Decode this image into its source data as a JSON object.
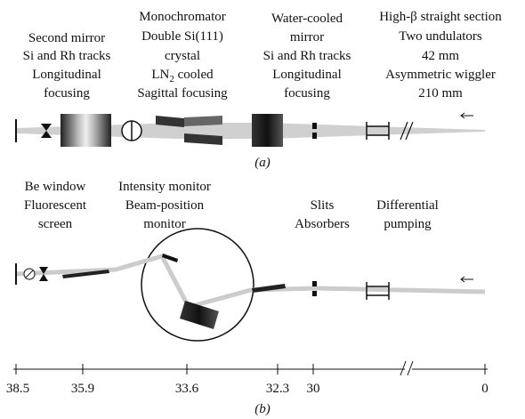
{
  "panel_a": {
    "second_mirror": [
      "Second mirror",
      "Si and Rh tracks",
      "Longitudinal",
      "focusing"
    ],
    "monochromator": {
      "lines": [
        "Monochromator",
        "Double Si(111)",
        "crystal"
      ],
      "ln": "LN",
      "ln_sub": "2",
      "ln_rest": " cooled",
      "last": "Sagittal focusing"
    },
    "water_cooled_mirror": [
      "Water-cooled",
      "mirror",
      "Si and Rh tracks",
      "Longitudinal",
      "focusing"
    ],
    "straight_section": [
      "High-β straight section",
      "Two undulators",
      "42 mm",
      "Asymmetric wiggler",
      "210 mm"
    ],
    "caption": "(a)"
  },
  "panel_b": {
    "be_window": [
      "Be window",
      "Fluorescent",
      "screen"
    ],
    "intensity_monitor": [
      "Intensity monitor",
      "Beam-position",
      "monitor"
    ],
    "slits": [
      "Slits",
      "Absorbers"
    ],
    "differential_pumping": [
      "Differential",
      "pumping"
    ],
    "scale": [
      "38.5",
      "35.9",
      "33.6",
      "32.3",
      "30",
      "0"
    ],
    "caption": "(b)"
  }
}
